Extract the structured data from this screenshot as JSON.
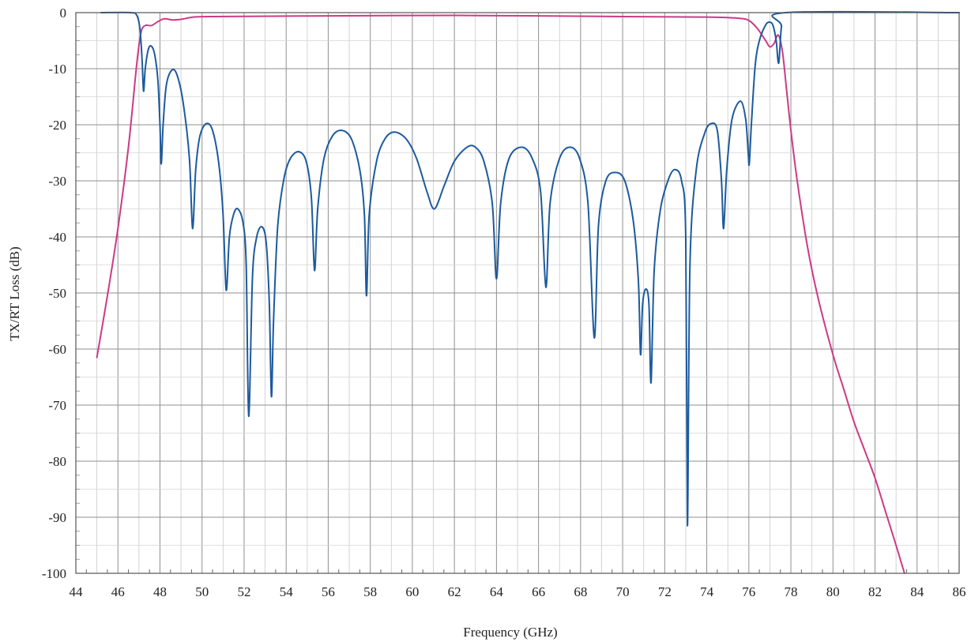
{
  "chart_data": {
    "type": "line",
    "title": "",
    "xlabel": "Frequency (GHz)",
    "ylabel": "TX/RT Loss (dB)",
    "xlim": [
      44,
      86
    ],
    "ylim": [
      -100,
      0
    ],
    "x_ticks": [
      "44",
      "46",
      "48",
      "50",
      "52",
      "54",
      "56",
      "58",
      "60",
      "62",
      "64",
      "66",
      "68",
      "70",
      "72",
      "74",
      "76",
      "78",
      "80",
      "82",
      "84",
      "86"
    ],
    "y_ticks": [
      "0",
      "-10",
      "-20",
      "-30",
      "-40",
      "-50",
      "-60",
      "-70",
      "-80",
      "-90",
      "-100"
    ],
    "grid": true,
    "legend": "none",
    "series": [
      {
        "color": "#cc3a86",
        "points": [
          [
            45.0,
            -61.5
          ],
          [
            45.5,
            -50.5
          ],
          [
            46.0,
            -38.5
          ],
          [
            46.5,
            -24.0
          ],
          [
            46.9,
            -9.0
          ],
          [
            47.1,
            -3.5
          ],
          [
            47.3,
            -2.3
          ],
          [
            47.6,
            -2.3
          ],
          [
            47.9,
            -1.6
          ],
          [
            48.2,
            -1.1
          ],
          [
            48.6,
            -1.3
          ],
          [
            49.0,
            -1.2
          ],
          [
            49.6,
            -0.8
          ],
          [
            50.5,
            -0.7
          ],
          [
            55.0,
            -0.6
          ],
          [
            62.0,
            -0.5
          ],
          [
            70.0,
            -0.7
          ],
          [
            74.0,
            -0.8
          ],
          [
            75.5,
            -1.0
          ],
          [
            76.0,
            -1.4
          ],
          [
            76.4,
            -2.8
          ],
          [
            76.8,
            -5.0
          ],
          [
            77.0,
            -6.1
          ],
          [
            77.2,
            -5.5
          ],
          [
            77.4,
            -4.0
          ],
          [
            77.6,
            -7.0
          ],
          [
            77.8,
            -14.0
          ],
          [
            78.0,
            -21.0
          ],
          [
            78.3,
            -30.0
          ],
          [
            78.8,
            -42.0
          ],
          [
            79.3,
            -51.0
          ],
          [
            80.0,
            -61.0
          ],
          [
            80.5,
            -67.0
          ],
          [
            81.0,
            -73.0
          ],
          [
            81.5,
            -78.0
          ],
          [
            82.0,
            -83.0
          ],
          [
            82.5,
            -89.0
          ],
          [
            83.0,
            -95.0
          ],
          [
            83.4,
            -100.0
          ]
        ]
      },
      {
        "color": "#1c5a9e",
        "points": [
          [
            45.2,
            0.0
          ],
          [
            46.6,
            0.0
          ],
          [
            46.9,
            -0.5
          ],
          [
            47.05,
            -3.0
          ],
          [
            47.15,
            -8.5
          ],
          [
            47.22,
            -14.0
          ],
          [
            47.3,
            -10.0
          ],
          [
            47.45,
            -6.5
          ],
          [
            47.6,
            -6.0
          ],
          [
            47.75,
            -7.5
          ],
          [
            47.9,
            -12.0
          ],
          [
            48.0,
            -20.0
          ],
          [
            48.06,
            -27.0
          ],
          [
            48.15,
            -20.0
          ],
          [
            48.3,
            -13.0
          ],
          [
            48.55,
            -10.3
          ],
          [
            48.8,
            -11.0
          ],
          [
            49.1,
            -16.0
          ],
          [
            49.4,
            -26.0
          ],
          [
            49.55,
            -38.5
          ],
          [
            49.7,
            -28.0
          ],
          [
            49.9,
            -22.0
          ],
          [
            50.2,
            -19.8
          ],
          [
            50.5,
            -21.0
          ],
          [
            50.8,
            -27.0
          ],
          [
            51.0,
            -36.0
          ],
          [
            51.15,
            -49.5
          ],
          [
            51.3,
            -40.0
          ],
          [
            51.5,
            -36.0
          ],
          [
            51.7,
            -35.0
          ],
          [
            51.95,
            -37.5
          ],
          [
            52.1,
            -45.0
          ],
          [
            52.22,
            -72.0
          ],
          [
            52.4,
            -47.0
          ],
          [
            52.6,
            -40.0
          ],
          [
            52.85,
            -38.2
          ],
          [
            53.05,
            -41.0
          ],
          [
            53.2,
            -52.0
          ],
          [
            53.3,
            -68.5
          ],
          [
            53.4,
            -55.0
          ],
          [
            53.6,
            -38.0
          ],
          [
            53.9,
            -29.5
          ],
          [
            54.2,
            -26.0
          ],
          [
            54.6,
            -24.8
          ],
          [
            54.95,
            -26.5
          ],
          [
            55.2,
            -33.0
          ],
          [
            55.35,
            -46.0
          ],
          [
            55.5,
            -35.0
          ],
          [
            55.8,
            -26.0
          ],
          [
            56.2,
            -22.0
          ],
          [
            56.65,
            -21.0
          ],
          [
            57.1,
            -22.5
          ],
          [
            57.5,
            -28.0
          ],
          [
            57.72,
            -36.0
          ],
          [
            57.82,
            -50.5
          ],
          [
            57.95,
            -36.0
          ],
          [
            58.3,
            -26.5
          ],
          [
            58.7,
            -22.5
          ],
          [
            59.15,
            -21.3
          ],
          [
            59.7,
            -22.5
          ],
          [
            60.2,
            -26.0
          ],
          [
            60.7,
            -32.0
          ],
          [
            61.05,
            -35.0
          ],
          [
            61.5,
            -31.0
          ],
          [
            62.0,
            -26.5
          ],
          [
            62.6,
            -24.0
          ],
          [
            63.0,
            -24.0
          ],
          [
            63.4,
            -26.5
          ],
          [
            63.8,
            -34.0
          ],
          [
            64.0,
            -47.5
          ],
          [
            64.2,
            -34.0
          ],
          [
            64.6,
            -26.0
          ],
          [
            65.2,
            -24.0
          ],
          [
            65.7,
            -26.0
          ],
          [
            66.1,
            -32.0
          ],
          [
            66.35,
            -49.0
          ],
          [
            66.55,
            -34.0
          ],
          [
            67.0,
            -26.0
          ],
          [
            67.5,
            -24.0
          ],
          [
            67.95,
            -26.0
          ],
          [
            68.35,
            -34.0
          ],
          [
            68.65,
            -58.0
          ],
          [
            68.85,
            -38.0
          ],
          [
            69.2,
            -30.0
          ],
          [
            69.65,
            -28.5
          ],
          [
            70.1,
            -30.0
          ],
          [
            70.5,
            -37.0
          ],
          [
            70.75,
            -48.0
          ],
          [
            70.85,
            -61.0
          ],
          [
            70.95,
            -52.0
          ],
          [
            71.1,
            -49.3
          ],
          [
            71.25,
            -52.0
          ],
          [
            71.35,
            -66.0
          ],
          [
            71.5,
            -46.0
          ],
          [
            71.8,
            -35.0
          ],
          [
            72.2,
            -29.5
          ],
          [
            72.5,
            -28.0
          ],
          [
            72.8,
            -30.0
          ],
          [
            73.0,
            -40.0
          ],
          [
            73.08,
            -91.5
          ],
          [
            73.2,
            -45.0
          ],
          [
            73.5,
            -28.0
          ],
          [
            73.9,
            -21.5
          ],
          [
            74.2,
            -19.8
          ],
          [
            74.5,
            -21.0
          ],
          [
            74.7,
            -30.0
          ],
          [
            74.8,
            -38.5
          ],
          [
            74.95,
            -28.0
          ],
          [
            75.2,
            -19.0
          ],
          [
            75.6,
            -15.8
          ],
          [
            75.85,
            -19.0
          ],
          [
            75.97,
            -25.0
          ],
          [
            76.02,
            -27.0
          ],
          [
            76.12,
            -20.0
          ],
          [
            76.3,
            -9.5
          ],
          [
            76.5,
            -5.0
          ],
          [
            76.8,
            -2.2
          ],
          [
            77.0,
            -1.7
          ],
          [
            77.15,
            -2.3
          ],
          [
            77.3,
            -5.0
          ],
          [
            77.42,
            -9.0
          ],
          [
            77.55,
            -2.5
          ],
          [
            77.75,
            0.0
          ],
          [
            86.0,
            0.0
          ]
        ]
      }
    ]
  }
}
